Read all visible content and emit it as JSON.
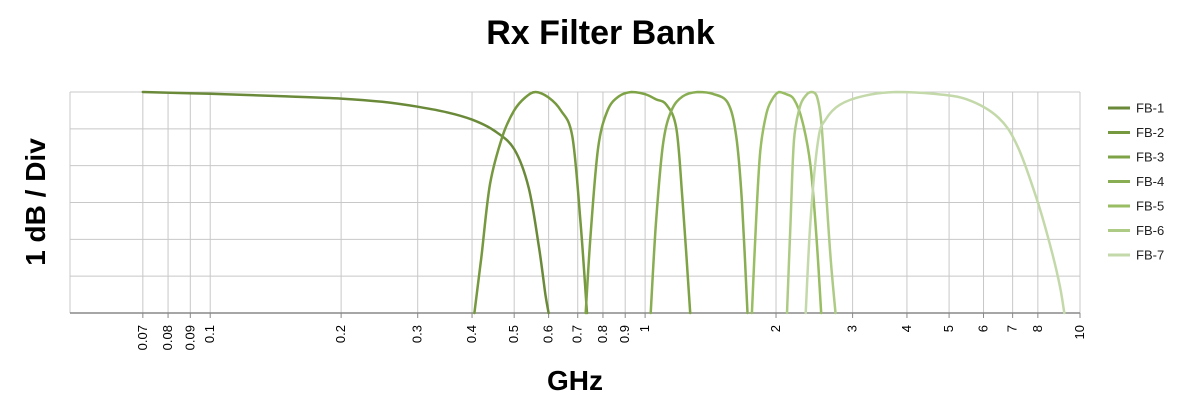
{
  "chart_data": {
    "type": "line",
    "title": "Rx Filter Bank",
    "xlabel": "GHz",
    "ylabel": "1 dB / Div",
    "x_scale": "log",
    "xlim": [
      0.0476,
      10
    ],
    "ylim": [
      -6,
      0
    ],
    "x_tick_labels": [
      "0.07",
      "0.08",
      "0.09",
      "0.1",
      "0.2",
      "0.3",
      "0.4",
      "0.5",
      "0.6",
      "0.7",
      "0.8",
      "0.9",
      "1",
      "2",
      "3",
      "4",
      "5",
      "6",
      "7",
      "8",
      "10"
    ],
    "grid": true,
    "legend_position": "right",
    "colors": [
      "#6a8a3a",
      "#76983f",
      "#7ea346",
      "#88ad52",
      "#98bd63",
      "#aecb86",
      "#c4d9aa"
    ],
    "series": [
      {
        "name": "FB-1",
        "x": [
          0.07,
          0.1,
          0.15,
          0.2,
          0.25,
          0.3,
          0.35,
          0.4,
          0.45,
          0.5,
          0.54,
          0.57,
          0.59,
          0.6
        ],
        "y": [
          0,
          -0.05,
          -0.12,
          -0.18,
          -0.27,
          -0.4,
          -0.55,
          -0.75,
          -1.05,
          -1.55,
          -2.6,
          -4.2,
          -5.5,
          -6
        ]
      },
      {
        "name": "FB-2",
        "x": [
          0.405,
          0.42,
          0.44,
          0.47,
          0.5,
          0.53,
          0.56,
          0.6,
          0.64,
          0.68,
          0.71,
          0.735
        ],
        "y": [
          -6,
          -4.5,
          -2.5,
          -1.2,
          -0.5,
          -0.15,
          0,
          -0.15,
          -0.5,
          -1.2,
          -3.5,
          -6
        ]
      },
      {
        "name": "FB-3",
        "x": [
          0.73,
          0.75,
          0.78,
          0.82,
          0.87,
          0.93,
          1.0,
          1.06,
          1.12,
          1.18,
          1.22,
          1.27
        ],
        "y": [
          -6,
          -3.8,
          -1.5,
          -0.5,
          -0.12,
          0,
          -0.06,
          -0.2,
          -0.35,
          -1.0,
          -3.0,
          -6
        ]
      },
      {
        "name": "FB-4",
        "x": [
          1.03,
          1.06,
          1.1,
          1.15,
          1.22,
          1.32,
          1.43,
          1.55,
          1.62,
          1.67,
          1.72
        ],
        "y": [
          -6,
          -3.5,
          -1.4,
          -0.5,
          -0.12,
          0,
          -0.05,
          -0.3,
          -1.2,
          -3.0,
          -6
        ]
      },
      {
        "name": "FB-5",
        "x": [
          1.76,
          1.8,
          1.84,
          1.9,
          1.96,
          2.03,
          2.1,
          2.2,
          2.3,
          2.4,
          2.48,
          2.54
        ],
        "y": [
          -6,
          -3.5,
          -1.6,
          -0.6,
          -0.2,
          0,
          -0.05,
          -0.2,
          -0.8,
          -2.0,
          -4.0,
          -6
        ]
      },
      {
        "name": "FB-6",
        "x": [
          2.12,
          2.16,
          2.2,
          2.27,
          2.34,
          2.41,
          2.48,
          2.54,
          2.6,
          2.67,
          2.74
        ],
        "y": [
          -6,
          -3.5,
          -1.3,
          -0.4,
          -0.1,
          0,
          -0.1,
          -0.8,
          -2.5,
          -4.5,
          -6
        ]
      },
      {
        "name": "FB-7",
        "x": [
          2.34,
          2.4,
          2.5,
          2.6,
          2.8,
          3.2,
          3.8,
          4.6,
          5.5,
          6.5,
          7.2,
          8.0,
          8.6,
          9.0,
          9.2
        ],
        "y": [
          -6,
          -3.5,
          -1.3,
          -0.75,
          -0.35,
          -0.1,
          0,
          -0.05,
          -0.2,
          -0.7,
          -1.5,
          -3.0,
          -4.3,
          -5.3,
          -6
        ]
      }
    ]
  }
}
